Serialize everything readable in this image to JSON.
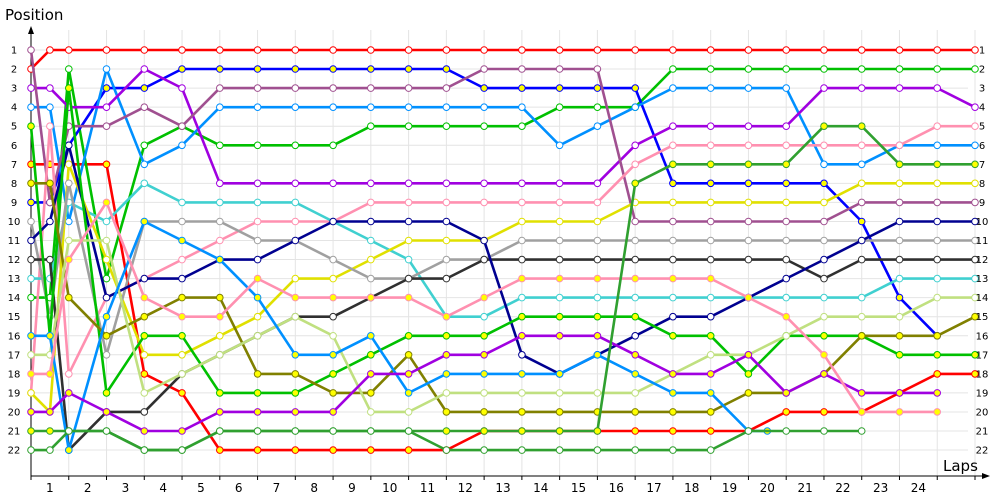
{
  "chart_data": {
    "type": "line",
    "xlabel": "Laps",
    "ylabel": "Position",
    "x_ticks": [
      "1",
      "2",
      "3",
      "4",
      "5",
      "6",
      "7",
      "8",
      "9",
      "10",
      "11",
      "12",
      "13",
      "14",
      "15",
      "16",
      "17",
      "18",
      "19",
      "20",
      "21",
      "22",
      "23",
      "24"
    ],
    "y_ticks": [
      "1",
      "2",
      "3",
      "4",
      "5",
      "6",
      "7",
      "8",
      "9",
      "10",
      "11",
      "12",
      "13",
      "14",
      "15",
      "16",
      "17",
      "18",
      "19",
      "20",
      "21",
      "22"
    ],
    "x_range": [
      0,
      25
    ],
    "y_range": [
      1,
      22
    ],
    "y_inverted": true,
    "grid": true,
    "series": [
      {
        "color": "#ff0000",
        "marker_fill": "#ffffff",
        "x": [
          0,
          0.5,
          1,
          2,
          3,
          4,
          5,
          6,
          7,
          8,
          9,
          10,
          11,
          12,
          13,
          14,
          15,
          16,
          17,
          18,
          19,
          20,
          21,
          22,
          23,
          24,
          25
        ],
        "values": [
          2,
          1,
          1,
          1,
          1,
          1,
          1,
          1,
          1,
          1,
          1,
          1,
          1,
          1,
          1,
          1,
          1,
          1,
          1,
          1,
          1,
          1,
          1,
          1,
          1,
          1,
          1
        ]
      },
      {
        "color": "#ff0000",
        "marker_fill": "#ffff00",
        "x": [
          0,
          0.5,
          1,
          2,
          3,
          4,
          5,
          6,
          7,
          8,
          9,
          10,
          11,
          12,
          13,
          14,
          15,
          16,
          17,
          18,
          19,
          20,
          21,
          22,
          23,
          24,
          25
        ],
        "values": [
          7,
          7,
          7,
          7,
          18,
          19,
          22,
          22,
          22,
          22,
          22,
          22,
          22,
          21,
          21,
          21,
          21,
          21,
          21,
          21,
          21,
          20,
          20,
          20,
          19,
          18,
          18
        ]
      },
      {
        "color": "#00c000",
        "marker_fill": "#ffffff",
        "x": [
          0,
          0.5,
          1,
          2,
          3,
          4,
          5,
          6,
          7,
          8,
          9,
          10,
          11,
          12,
          13,
          14,
          15,
          16,
          17,
          18,
          19,
          20,
          21,
          22,
          23,
          24,
          25
        ],
        "values": [
          14,
          14,
          2,
          13,
          6,
          5,
          6,
          6,
          6,
          6,
          5,
          5,
          5,
          5,
          5,
          4,
          4,
          4,
          2,
          2,
          2,
          2,
          2,
          2,
          2,
          2,
          2
        ]
      },
      {
        "color": "#0000ff",
        "marker_fill": "#ffff00",
        "x": [
          0,
          0.5,
          1,
          2,
          3,
          4,
          5,
          6,
          7,
          8,
          9,
          10,
          11,
          12,
          13,
          14,
          15,
          16,
          17,
          18,
          19,
          20,
          21,
          22,
          23,
          24
        ],
        "values": [
          9,
          9,
          6,
          3,
          3,
          2,
          2,
          2,
          2,
          2,
          2,
          2,
          2,
          3,
          3,
          3,
          3,
          3,
          8,
          8,
          8,
          8,
          8,
          10,
          14,
          16
        ]
      },
      {
        "color": "#0090ff",
        "marker_fill": "#ffffff",
        "x": [
          0,
          0.5,
          1,
          2,
          3,
          4,
          5,
          6,
          7,
          8,
          9,
          10,
          11,
          12,
          13,
          14,
          15,
          16,
          17,
          18,
          19,
          20,
          21,
          22,
          23,
          24,
          25
        ],
        "values": [
          4,
          4,
          10,
          2,
          7,
          6,
          4,
          4,
          4,
          4,
          4,
          4,
          4,
          4,
          4,
          6,
          5,
          4,
          3,
          3,
          3,
          3,
          7,
          7,
          6,
          6,
          6
        ]
      },
      {
        "color": "#a000e0",
        "marker_fill": "#ffffff",
        "x": [
          0,
          0.5,
          1,
          2,
          3,
          4,
          5,
          6,
          7,
          8,
          9,
          10,
          11,
          12,
          13,
          14,
          15,
          16,
          17,
          18,
          19,
          20,
          21,
          22,
          23,
          24,
          25
        ],
        "values": [
          3,
          3,
          4,
          4,
          2,
          3,
          8,
          8,
          8,
          8,
          8,
          8,
          8,
          8,
          8,
          8,
          8,
          6,
          5,
          5,
          5,
          5,
          3,
          3,
          3,
          3,
          4
        ]
      },
      {
        "color": "#a05090",
        "marker_fill": "#ffffff",
        "x": [
          0,
          0.5,
          1,
          2,
          3,
          4,
          5,
          6,
          7,
          8,
          9,
          10,
          11,
          12,
          13,
          14,
          15,
          16,
          17,
          18,
          19,
          20,
          21,
          22,
          23,
          24,
          25
        ],
        "values": [
          1,
          9,
          5,
          5,
          4,
          5,
          3,
          3,
          3,
          3,
          3,
          3,
          3,
          2,
          2,
          2,
          2,
          10,
          10,
          10,
          10,
          10,
          10,
          9,
          9,
          9,
          9
        ]
      },
      {
        "color": "#ff90b0",
        "marker_fill": "#ffffff",
        "x": [
          0,
          0.5,
          1,
          2,
          3,
          4,
          5,
          6,
          7,
          8,
          9,
          10,
          11,
          12,
          13,
          14,
          15,
          16,
          17,
          18,
          19,
          20,
          21,
          22,
          23,
          24,
          25
        ],
        "values": [
          19,
          5,
          18,
          14,
          13,
          12,
          11,
          10,
          10,
          10,
          9,
          9,
          9,
          9,
          9,
          9,
          9,
          7,
          6,
          6,
          6,
          6,
          6,
          6,
          6,
          5,
          5
        ]
      },
      {
        "color": "#40d0d0",
        "marker_fill": "#ffffff",
        "x": [
          0,
          0.5,
          1,
          2,
          3,
          4,
          5,
          6,
          7,
          8,
          9,
          10,
          11,
          12,
          13,
          14,
          15,
          16,
          17,
          18,
          19,
          20,
          21,
          22,
          23,
          24,
          25
        ],
        "values": [
          13,
          13,
          9,
          10,
          8,
          9,
          9,
          9,
          9,
          10,
          11,
          12,
          15,
          15,
          14,
          14,
          14,
          14,
          14,
          14,
          14,
          14,
          14,
          14,
          13,
          13,
          13
        ]
      },
      {
        "color": "#e0e000",
        "marker_fill": "#ffffff",
        "x": [
          0,
          0.5,
          1,
          2,
          3,
          4,
          5,
          6,
          7,
          8,
          9,
          10,
          11,
          12,
          13,
          14,
          15,
          16,
          17,
          18,
          19,
          20,
          21,
          22,
          23,
          24,
          25
        ],
        "values": [
          19,
          20,
          7,
          12,
          17,
          17,
          16,
          15,
          13,
          13,
          12,
          11,
          11,
          11,
          10,
          10,
          10,
          9,
          9,
          9,
          9,
          9,
          9,
          8,
          8,
          8,
          8
        ]
      },
      {
        "color": "#a0a0a0",
        "marker_fill": "#ffffff",
        "x": [
          0,
          0.5,
          1,
          2,
          3,
          4,
          5,
          6,
          7,
          8,
          9,
          10,
          11,
          12,
          13,
          14,
          15,
          16,
          17,
          18,
          19,
          20,
          21,
          22,
          23,
          24,
          25
        ],
        "values": [
          10,
          15,
          8,
          17,
          10,
          10,
          10,
          11,
          11,
          12,
          13,
          13,
          12,
          12,
          11,
          11,
          11,
          11,
          11,
          11,
          11,
          11,
          11,
          11,
          11,
          11,
          11
        ]
      },
      {
        "color": "#303030",
        "marker_fill": "#ffffff",
        "x": [
          0,
          0.5,
          1,
          2,
          3,
          4,
          5,
          6,
          7,
          8,
          9,
          10,
          11,
          12,
          13,
          14,
          15,
          16,
          17,
          18,
          19,
          20,
          21,
          22,
          23,
          24,
          25
        ],
        "values": [
          12,
          12,
          22,
          20,
          20,
          18,
          17,
          16,
          15,
          15,
          14,
          13,
          13,
          12,
          12,
          12,
          12,
          12,
          12,
          12,
          12,
          12,
          13,
          12,
          12,
          12,
          12
        ]
      },
      {
        "color": "#000090",
        "marker_fill": "#ffffff",
        "x": [
          0,
          0.5,
          1,
          2,
          3,
          4,
          5,
          6,
          7,
          8,
          9,
          10,
          11,
          12,
          13,
          14,
          15,
          16,
          17,
          18,
          19,
          20,
          21,
          22,
          23,
          24,
          25
        ],
        "values": [
          11,
          10,
          6,
          14,
          13,
          13,
          12,
          12,
          11,
          10,
          10,
          10,
          10,
          11,
          17,
          18,
          17,
          16,
          15,
          15,
          14,
          13,
          12,
          11,
          10,
          10,
          10
        ]
      },
      {
        "color": "#00c000",
        "marker_fill": "#ffff00",
        "x": [
          0,
          0.5,
          1,
          2,
          3,
          4,
          5,
          6,
          7,
          8,
          9,
          10,
          11,
          12,
          13,
          14,
          15,
          16,
          17,
          18,
          19,
          20,
          21,
          22,
          23,
          24,
          25
        ],
        "values": [
          5,
          16,
          3,
          19,
          16,
          16,
          19,
          19,
          19,
          18,
          17,
          16,
          16,
          16,
          15,
          15,
          15,
          15,
          16,
          16,
          18,
          16,
          16,
          16,
          17,
          17,
          17
        ]
      },
      {
        "color": "#808000",
        "marker_fill": "#ffff00",
        "x": [
          0,
          0.5,
          1,
          2,
          3,
          4,
          5,
          6,
          7,
          8,
          9,
          10,
          11,
          12,
          13,
          14,
          15,
          16,
          17,
          18,
          19,
          20,
          21,
          22,
          23,
          24,
          25
        ],
        "values": [
          8,
          8,
          14,
          16,
          15,
          14,
          14,
          18,
          18,
          19,
          19,
          17,
          20,
          20,
          20,
          20,
          20,
          20,
          20,
          20,
          19,
          19,
          18,
          16,
          16,
          16,
          15
        ]
      },
      {
        "color": "#c0e080",
        "marker_fill": "#ffffff",
        "x": [
          0,
          0.5,
          1,
          2,
          3,
          4,
          5,
          6,
          7,
          8,
          9,
          10,
          11,
          12,
          13,
          14,
          15,
          16,
          17,
          18,
          19,
          20,
          21,
          22,
          23,
          24,
          25
        ],
        "values": [
          17,
          17,
          11,
          11,
          19,
          18,
          17,
          16,
          15,
          16,
          20,
          20,
          19,
          19,
          19,
          19,
          19,
          19,
          18,
          17,
          17,
          16,
          15,
          15,
          15,
          14,
          14
        ]
      },
      {
        "color": "#0090ff",
        "marker_fill": "#ffff00",
        "x": [
          0,
          0.5,
          1,
          2,
          3,
          4,
          5,
          6,
          7,
          8,
          9,
          10,
          11,
          12,
          13,
          14,
          15,
          16,
          17,
          18,
          19,
          19.5
        ],
        "values": [
          16,
          16,
          22,
          15,
          10,
          11,
          12,
          14,
          17,
          17,
          16,
          19,
          18,
          18,
          18,
          18,
          17,
          18,
          19,
          19,
          21,
          21
        ]
      },
      {
        "color": "#a000e0",
        "marker_fill": "#ffff00",
        "x": [
          0,
          0.5,
          1,
          2,
          3,
          4,
          5,
          6,
          7,
          8,
          9,
          10,
          11,
          12,
          13,
          14,
          15,
          16,
          17,
          18,
          19,
          20,
          21,
          22,
          23,
          24
        ],
        "values": [
          20,
          20,
          19,
          20,
          21,
          21,
          20,
          20,
          20,
          20,
          18,
          18,
          17,
          17,
          16,
          16,
          16,
          17,
          18,
          18,
          17,
          19,
          18,
          19,
          19,
          19
        ]
      },
      {
        "color": "#ff90b0",
        "marker_fill": "#ffff00",
        "x": [
          0,
          0.5,
          1,
          2,
          3,
          4,
          5,
          6,
          7,
          8,
          9,
          10,
          11,
          12,
          13,
          14,
          15,
          16,
          17,
          18,
          19,
          20,
          21,
          22,
          23,
          24
        ],
        "values": [
          18,
          18,
          12,
          9,
          14,
          15,
          15,
          13,
          14,
          14,
          14,
          14,
          15,
          14,
          13,
          13,
          13,
          13,
          13,
          13,
          14,
          15,
          17,
          20,
          20,
          20
        ]
      },
      {
        "color": "#30a030",
        "marker_fill": "#ffff00",
        "x": [
          0,
          0.5,
          1,
          2,
          3,
          4,
          5,
          6,
          7,
          8,
          9,
          10,
          11,
          12,
          13,
          14,
          15,
          16,
          17,
          18,
          19,
          20,
          21,
          22,
          23,
          24,
          25
        ],
        "values": [
          21,
          21,
          21,
          21,
          22,
          22,
          21,
          21,
          21,
          21,
          21,
          21,
          21,
          21,
          21,
          21,
          21,
          8,
          7,
          7,
          7,
          7,
          5,
          5,
          7,
          7,
          7
        ]
      },
      {
        "color": "#30a030",
        "marker_fill": "#ffffff",
        "x": [
          0,
          0.5,
          1,
          2,
          3,
          4,
          5,
          6,
          7,
          8,
          9,
          10,
          11,
          12,
          13,
          14,
          15,
          16,
          17,
          18,
          19,
          20,
          21,
          22
        ],
        "values": [
          22,
          22,
          21,
          21,
          22,
          22,
          21,
          21,
          21,
          21,
          21,
          21,
          22,
          22,
          22,
          22,
          22,
          22,
          22,
          22,
          21,
          21,
          21,
          21
        ]
      }
    ]
  }
}
